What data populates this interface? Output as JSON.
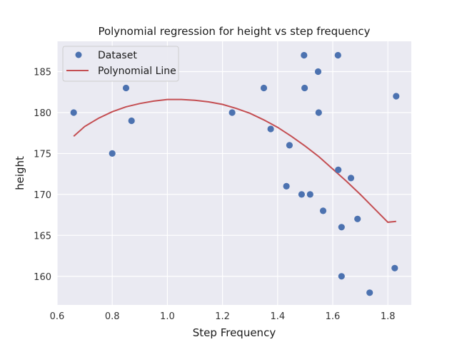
{
  "chart_data": {
    "type": "scatter",
    "title": "Polynomial regression for height vs step frequency",
    "xlabel": "Step Frequency",
    "ylabel": "height",
    "xlim": [
      0.6,
      1.885
    ],
    "ylim": [
      156.5,
      188.7
    ],
    "xticks": [
      0.6,
      0.8,
      1.0,
      1.2,
      1.4,
      1.6,
      1.8
    ],
    "xtick_labels": [
      "0.6",
      "0.8",
      "1.0",
      "1.2",
      "1.4",
      "1.6",
      "1.8"
    ],
    "yticks": [
      160,
      165,
      170,
      175,
      180,
      185
    ],
    "ytick_labels": [
      "160",
      "165",
      "170",
      "175",
      "180",
      "185"
    ],
    "grid": true,
    "legend_position": "top-left",
    "series": [
      {
        "name": "Dataset",
        "kind": "scatter",
        "color": "#4c72b0",
        "points": [
          [
            0.66,
            180
          ],
          [
            0.8,
            175
          ],
          [
            0.85,
            183
          ],
          [
            0.87,
            179
          ],
          [
            1.235,
            180
          ],
          [
            1.35,
            183
          ],
          [
            1.375,
            178
          ],
          [
            1.432,
            171
          ],
          [
            1.443,
            176
          ],
          [
            1.487,
            170
          ],
          [
            1.496,
            187
          ],
          [
            1.498,
            183
          ],
          [
            1.518,
            170
          ],
          [
            1.547,
            185
          ],
          [
            1.549,
            180
          ],
          [
            1.565,
            168
          ],
          [
            1.619,
            187
          ],
          [
            1.62,
            173
          ],
          [
            1.632,
            166
          ],
          [
            1.632,
            160
          ],
          [
            1.666,
            172
          ],
          [
            1.69,
            167
          ],
          [
            1.734,
            158
          ],
          [
            1.825,
            161
          ],
          [
            1.83,
            182
          ]
        ]
      },
      {
        "name": "Polynomial Line",
        "kind": "line",
        "color": "#c44e52",
        "points": [
          [
            0.66,
            177.1
          ],
          [
            0.7,
            178.3
          ],
          [
            0.75,
            179.3
          ],
          [
            0.8,
            180.1
          ],
          [
            0.85,
            180.7
          ],
          [
            0.9,
            181.1
          ],
          [
            0.95,
            181.4
          ],
          [
            1.0,
            181.6
          ],
          [
            1.05,
            181.6
          ],
          [
            1.1,
            181.5
          ],
          [
            1.15,
            181.3
          ],
          [
            1.2,
            181.0
          ],
          [
            1.25,
            180.5
          ],
          [
            1.3,
            179.9
          ],
          [
            1.35,
            179.1
          ],
          [
            1.4,
            178.2
          ],
          [
            1.45,
            177.1
          ],
          [
            1.5,
            175.9
          ],
          [
            1.55,
            174.6
          ],
          [
            1.6,
            173.1
          ],
          [
            1.65,
            171.6
          ],
          [
            1.7,
            170.0
          ],
          [
            1.75,
            168.3
          ],
          [
            1.8,
            166.6
          ],
          [
            1.83,
            166.7
          ]
        ]
      }
    ]
  }
}
